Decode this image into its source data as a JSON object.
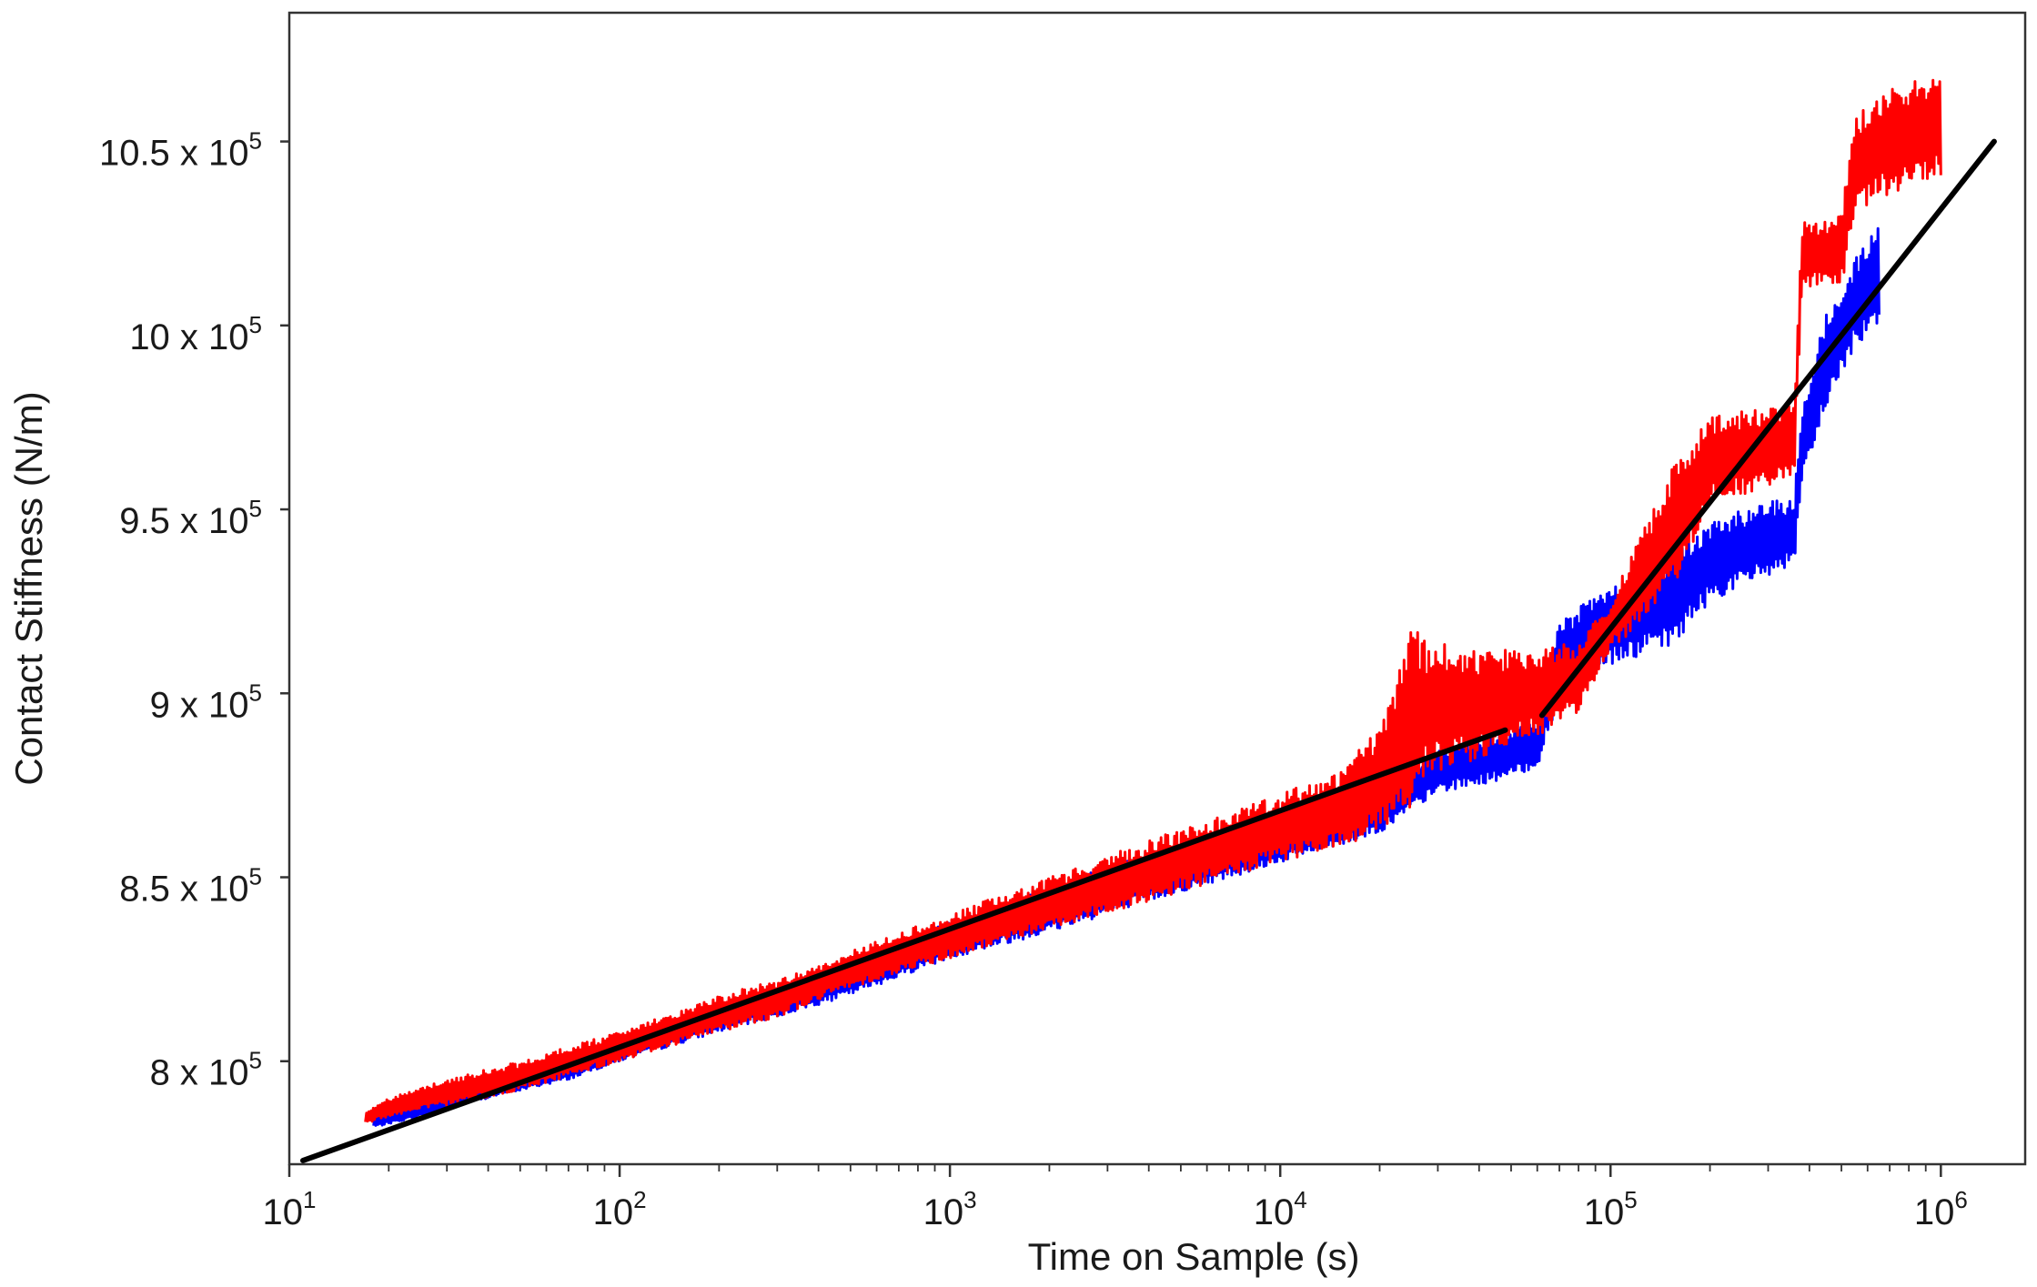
{
  "chart_data": {
    "type": "line",
    "xlabel": "Time on Sample (s)",
    "ylabel": "Contact Stiffness (N/m)",
    "xscale": "log",
    "xlim": [
      10,
      1800000
    ],
    "ylim": [
      772000,
      1085000
    ],
    "grid": false,
    "legend": "none",
    "x_ticks": [
      {
        "value": 10,
        "base": "10",
        "exp": "1"
      },
      {
        "value": 100,
        "base": "10",
        "exp": "2"
      },
      {
        "value": 1000,
        "base": "10",
        "exp": "3"
      },
      {
        "value": 10000,
        "base": "10",
        "exp": "4"
      },
      {
        "value": 100000,
        "base": "10",
        "exp": "5"
      },
      {
        "value": 1000000,
        "base": "10",
        "exp": "6"
      }
    ],
    "y_ticks": [
      {
        "value": 800000,
        "mant": "8 x 10",
        "exp": "5"
      },
      {
        "value": 850000,
        "mant": "8.5 x 10",
        "exp": "5"
      },
      {
        "value": 900000,
        "mant": "9 x 10",
        "exp": "5"
      },
      {
        "value": 950000,
        "mant": "9.5 x 10",
        "exp": "5"
      },
      {
        "value": 1000000,
        "mant": "10 x 10",
        "exp": "5"
      },
      {
        "value": 1050000,
        "mant": "10.5 x 10",
        "exp": "5"
      }
    ],
    "series": [
      {
        "color": "#0000ff",
        "style": "noisy band",
        "points": [
          [
            18,
            782000,
            785000
          ],
          [
            25,
            785000,
            788000
          ],
          [
            40,
            790000,
            794000
          ],
          [
            70,
            795000,
            800000
          ],
          [
            100,
            800000,
            805000
          ],
          [
            200,
            808000,
            815000
          ],
          [
            300,
            812000,
            820000
          ],
          [
            500,
            818000,
            826000
          ],
          [
            1000,
            828000,
            838000
          ],
          [
            2000,
            835000,
            847000
          ],
          [
            3000,
            840000,
            853000
          ],
          [
            5000,
            846000,
            858000
          ],
          [
            10000,
            854000,
            866000
          ],
          [
            20000,
            862000,
            876000
          ],
          [
            30000,
            873000,
            885000
          ],
          [
            50000,
            877000,
            890000
          ],
          [
            60000,
            880000,
            893000
          ],
          [
            70000,
            898000,
            920000
          ],
          [
            100000,
            908000,
            930000
          ],
          [
            150000,
            912000,
            938000
          ],
          [
            200000,
            925000,
            947000
          ],
          [
            300000,
            932000,
            952000
          ],
          [
            360000,
            935000,
            953000
          ],
          [
            380000,
            955000,
            980000
          ],
          [
            450000,
            978000,
            1003000
          ],
          [
            550000,
            994000,
            1018000
          ],
          [
            650000,
            1001000,
            1030000
          ]
        ]
      },
      {
        "color": "#ff0000",
        "style": "noisy band",
        "points": [
          [
            17,
            783000,
            786000
          ],
          [
            20,
            785000,
            790000
          ],
          [
            30,
            788000,
            795000
          ],
          [
            50,
            792000,
            800000
          ],
          [
            100,
            800000,
            808000
          ],
          [
            200,
            808000,
            818000
          ],
          [
            300,
            812000,
            822000
          ],
          [
            500,
            820000,
            830000
          ],
          [
            1000,
            828000,
            840000
          ],
          [
            2000,
            836000,
            850000
          ],
          [
            3000,
            840000,
            856000
          ],
          [
            5000,
            846000,
            863000
          ],
          [
            10000,
            854000,
            873000
          ],
          [
            15000,
            858000,
            878000
          ],
          [
            20000,
            862000,
            892000
          ],
          [
            25000,
            868000,
            918000
          ],
          [
            28000,
            878000,
            914000
          ],
          [
            40000,
            882000,
            912000
          ],
          [
            60000,
            888000,
            912000
          ],
          [
            80000,
            895000,
            914000
          ],
          [
            100000,
            912000,
            925000
          ],
          [
            150000,
            925000,
            960000
          ],
          [
            200000,
            952000,
            975000
          ],
          [
            300000,
            955000,
            978000
          ],
          [
            360000,
            960000,
            980000
          ],
          [
            380000,
            1010000,
            1028000
          ],
          [
            500000,
            1010000,
            1030000
          ],
          [
            550000,
            1030000,
            1058000
          ],
          [
            700000,
            1036000,
            1064000
          ],
          [
            1000000,
            1040000,
            1070000
          ]
        ]
      }
    ],
    "fit_lines": [
      {
        "color": "#000000",
        "points": [
          [
            11,
            773000
          ],
          [
            48000,
            890000
          ]
        ]
      },
      {
        "color": "#000000",
        "points": [
          [
            62000,
            894000
          ],
          [
            1450000,
            1050000
          ]
        ]
      }
    ]
  }
}
